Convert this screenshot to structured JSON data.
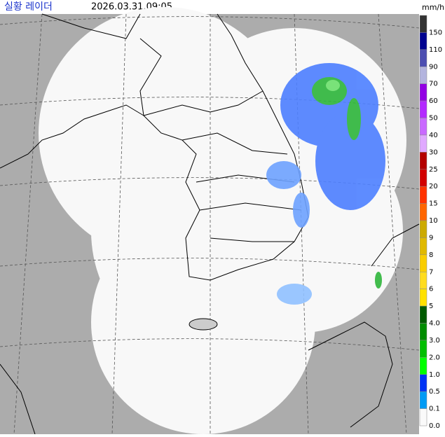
{
  "header": {
    "title": "실황 레이더",
    "time": "2026.03.31.09:05",
    "unit": "mm/h"
  },
  "legend": [
    {
      "label": "150",
      "color": "#333333"
    },
    {
      "label": "110",
      "color": "#000390"
    },
    {
      "label": "90",
      "color": "#4c4eb1"
    },
    {
      "label": "70",
      "color": "#b3b4de"
    },
    {
      "label": "60",
      "color": "#9300e4"
    },
    {
      "label": "50",
      "color": "#b329ff"
    },
    {
      "label": "40",
      "color": "#c969ff"
    },
    {
      "label": "30",
      "color": "#e0a9ff"
    },
    {
      "label": "25",
      "color": "#b40000"
    },
    {
      "label": "20",
      "color": "#d20000"
    },
    {
      "label": "15",
      "color": "#ff3300"
    },
    {
      "label": "10",
      "color": "#ff6600"
    },
    {
      "label": "9",
      "color": "#ccaa00"
    },
    {
      "label": "8",
      "color": "#e0b900"
    },
    {
      "label": "7",
      "color": "#f9cd00"
    },
    {
      "label": "6",
      "color": "#ffdc1f"
    },
    {
      "label": "5",
      "color": "#ffe100"
    },
    {
      "label": "4.0",
      "color": "#005a00"
    },
    {
      "label": "3.0",
      "color": "#008c00"
    },
    {
      "label": "2.0",
      "color": "#00be00"
    },
    {
      "label": "1.0",
      "color": "#00ff00"
    },
    {
      "label": "0.5",
      "color": "#0033f5"
    },
    {
      "label": "0.1",
      "color": "#009bf5"
    },
    {
      "label": "0.0",
      "color": "#fafafa"
    }
  ]
}
